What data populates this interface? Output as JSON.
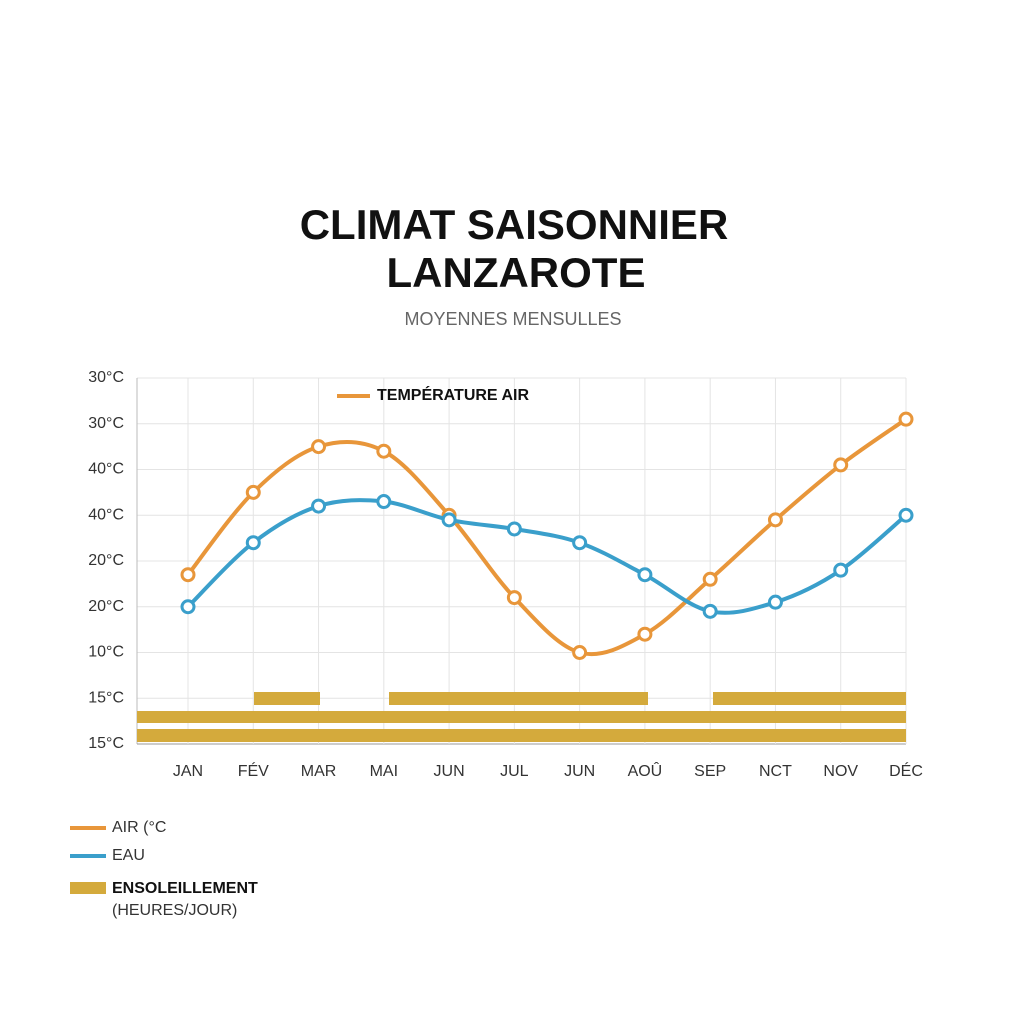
{
  "chart_data": {
    "type": "line",
    "title": [
      "CLIMAT SAISONNIER",
      "LANZAROTE"
    ],
    "subtitle": "MOYENNES MENSULLES",
    "annotation": "TEMPÉRATURE AIR",
    "categories": [
      "JAN",
      "FÉV",
      "MAR",
      "MAI",
      "JUN",
      "JUL",
      "JUN",
      "AOÛ",
      "SEP",
      "NCT",
      "NOV",
      "DÉC"
    ],
    "series": [
      {
        "name": "AIR (°C",
        "color": "#e8963a",
        "values": [
          3.7,
          5.5,
          6.5,
          6.4,
          5.0,
          3.2,
          2.0,
          2.4,
          3.6,
          4.9,
          6.1,
          7.1
        ]
      },
      {
        "name": "EAU",
        "color": "#3a9fcb",
        "values": [
          3.0,
          4.4,
          5.2,
          5.3,
          4.9,
          4.7,
          4.4,
          3.7,
          2.9,
          3.1,
          3.8,
          5.0
        ]
      }
    ],
    "sunshine_legend": [
      "ENSOLEILLEMENT",
      "(HEURES/JOUR)"
    ],
    "sunshine_color": "#d4aa3c",
    "ylim": [
      0,
      8
    ],
    "yticks": [
      {
        "value": 0,
        "label": "15°C"
      },
      {
        "value": 1,
        "label": "15°C"
      },
      {
        "value": 2,
        "label": "10°C"
      },
      {
        "value": 3,
        "label": "20°C"
      },
      {
        "value": 4,
        "label": "20°C"
      },
      {
        "value": 5,
        "label": "40°C"
      },
      {
        "value": 6,
        "label": "40°C"
      },
      {
        "value": 7,
        "label": "30°C"
      },
      {
        "value": 8,
        "label": "30°C"
      }
    ],
    "grid": true
  }
}
